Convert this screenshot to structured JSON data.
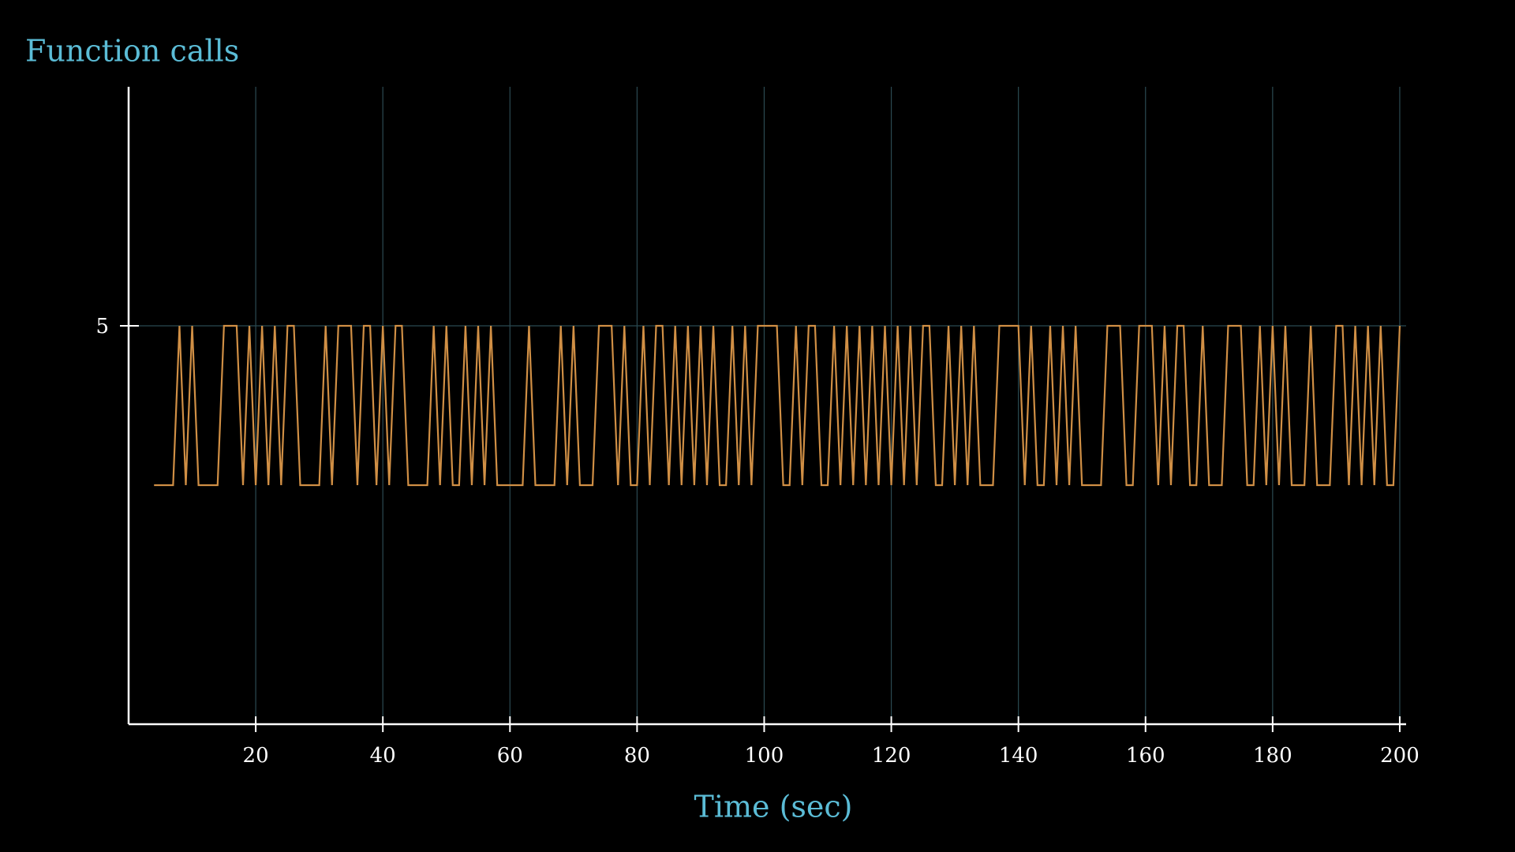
{
  "chart_data": {
    "type": "line",
    "title": "Function calls",
    "x_label": "Time (sec)",
    "x": [
      4,
      5,
      6,
      7,
      8,
      9,
      10,
      11,
      12,
      13,
      14,
      15,
      16,
      17,
      18,
      19,
      20,
      21,
      22,
      23,
      24,
      25,
      26,
      27,
      28,
      29,
      30,
      31,
      32,
      33,
      34,
      35,
      36,
      37,
      38,
      39,
      40,
      41,
      42,
      43,
      44,
      45,
      46,
      47,
      48,
      49,
      50,
      51,
      52,
      53,
      54,
      55,
      56,
      57,
      58,
      59,
      60,
      61,
      62,
      63,
      64,
      65,
      66,
      67,
      68,
      69,
      70,
      71,
      72,
      73,
      74,
      75,
      76,
      77,
      78,
      79,
      80,
      81,
      82,
      83,
      84,
      85,
      86,
      87,
      88,
      89,
      90,
      91,
      92,
      93,
      94,
      95,
      96,
      97,
      98,
      99,
      100,
      101,
      102,
      103,
      104,
      105,
      106,
      107,
      108,
      109,
      110,
      111,
      112,
      113,
      114,
      115,
      116,
      117,
      118,
      119,
      120,
      121,
      122,
      123,
      124,
      125,
      126,
      127,
      128,
      129,
      130,
      131,
      132,
      133,
      134,
      135,
      136,
      137,
      138,
      139,
      140,
      141,
      142,
      143,
      144,
      145,
      146,
      147,
      148,
      149,
      150,
      151,
      152,
      153,
      154,
      155,
      156,
      157,
      158,
      159,
      160,
      161,
      162,
      163,
      164,
      165,
      166,
      167,
      168,
      169,
      170,
      171,
      172,
      173,
      174,
      175,
      176,
      177,
      178,
      179,
      180,
      181,
      182,
      183,
      184,
      185,
      186,
      187,
      188,
      189,
      190,
      191,
      192,
      193,
      194,
      195,
      196,
      197,
      198,
      199,
      200
    ],
    "values": [
      4,
      4,
      4,
      4,
      5,
      4,
      5,
      4,
      4,
      4,
      4,
      5,
      5,
      5,
      4,
      5,
      4,
      5,
      4,
      5,
      4,
      5,
      5,
      4,
      4,
      4,
      4,
      5,
      4,
      5,
      5,
      5,
      4,
      5,
      5,
      4,
      5,
      4,
      5,
      5,
      4,
      4,
      4,
      4,
      5,
      4,
      5,
      4,
      4,
      5,
      4,
      5,
      4,
      5,
      4,
      4,
      4,
      4,
      4,
      5,
      4,
      4,
      4,
      4,
      5,
      4,
      5,
      4,
      4,
      4,
      5,
      5,
      5,
      4,
      5,
      4,
      4,
      5,
      4,
      5,
      5,
      4,
      5,
      4,
      5,
      4,
      5,
      4,
      5,
      4,
      4,
      5,
      4,
      5,
      4,
      5,
      5,
      5,
      5,
      4,
      4,
      5,
      4,
      5,
      5,
      4,
      4,
      5,
      4,
      5,
      4,
      5,
      4,
      5,
      4,
      5,
      4,
      5,
      4,
      5,
      4,
      5,
      5,
      4,
      4,
      5,
      4,
      5,
      4,
      5,
      4,
      4,
      4,
      5,
      5,
      5,
      5,
      4,
      5,
      4,
      4,
      5,
      4,
      5,
      4,
      5,
      4,
      4,
      4,
      4,
      5,
      5,
      5,
      4,
      4,
      5,
      5,
      5,
      4,
      5,
      4,
      5,
      5,
      4,
      4,
      5,
      4,
      4,
      4,
      5,
      5,
      5,
      4,
      4,
      5,
      4,
      5,
      4,
      5,
      4,
      4,
      4,
      5,
      4,
      4,
      4,
      5,
      5,
      4,
      5,
      4,
      5,
      4,
      5,
      4,
      4,
      5
    ],
    "color": "#d08f45",
    "xlim": [
      0,
      201
    ],
    "xticks": [
      20,
      40,
      60,
      80,
      100,
      120,
      140,
      160,
      180,
      200
    ],
    "ylim": [
      2.5,
      6.5
    ],
    "yticks": [
      5
    ],
    "grid": true
  }
}
